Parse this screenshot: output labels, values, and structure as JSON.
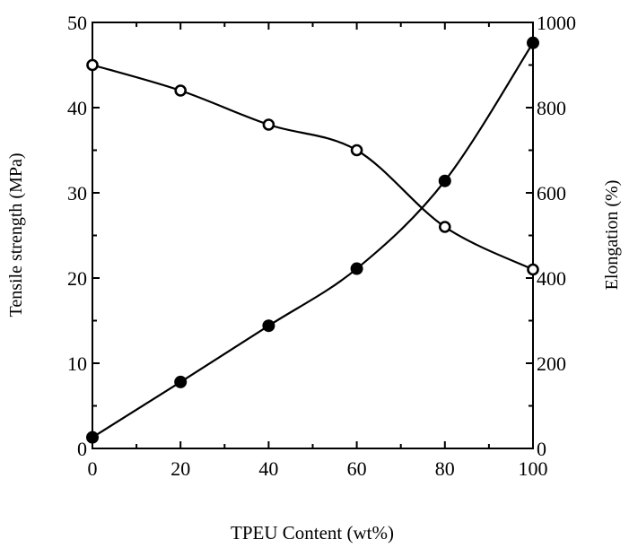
{
  "chart_data": {
    "type": "line",
    "title": "",
    "xlabel": "TPEU Content (wt%)",
    "ylabel": "Tensile strength (MPa)",
    "y2label": "Elongation (%)",
    "x": [
      0,
      20,
      40,
      60,
      80,
      100
    ],
    "xlim": [
      0,
      100
    ],
    "ylim": [
      0,
      50
    ],
    "y2lim": [
      0,
      1000
    ],
    "xticks": [
      "0",
      "20",
      "40",
      "60",
      "80",
      "100"
    ],
    "yticks": [
      "0",
      "10",
      "20",
      "30",
      "40",
      "50"
    ],
    "y2ticks": [
      "0",
      "200",
      "400",
      "600",
      "800",
      "1000"
    ],
    "series": [
      {
        "axis": "left",
        "marker": "filled-circle",
        "values": [
          1.3,
          7.8,
          14.4,
          21.1,
          31.4,
          47.6
        ]
      },
      {
        "axis": "right",
        "marker": "open-circle",
        "values": [
          900,
          840,
          760,
          700,
          520,
          420
        ]
      }
    ],
    "legend": "none",
    "grid": false
  }
}
